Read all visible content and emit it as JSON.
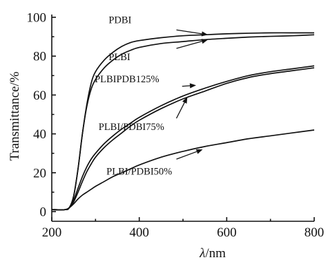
{
  "chart_data": {
    "type": "line",
    "title": "",
    "xlabel_italic": "λ",
    "xlabel_unit": "/nm",
    "ylabel": "Transmittance/%",
    "xlim": [
      200,
      800
    ],
    "ylim": [
      0,
      100
    ],
    "xticks": [
      200,
      400,
      600,
      800
    ],
    "yticks": [
      0,
      20,
      40,
      60,
      80,
      100
    ],
    "grid": false,
    "legend": "none",
    "series": [
      {
        "name": "PDBI",
        "label_anchor": [
          570,
          92
        ],
        "x": [
          200,
          230,
          240,
          250,
          260,
          270,
          280,
          290,
          300,
          320,
          340,
          360,
          380,
          400,
          450,
          500,
          550,
          600,
          650,
          700,
          750,
          800
        ],
        "y": [
          1,
          1,
          2,
          8,
          22,
          40,
          55,
          66,
          72,
          78,
          82,
          85,
          87,
          88,
          89.5,
          90.5,
          91,
          91.5,
          91.8,
          92,
          92,
          92
        ]
      },
      {
        "name": "PLBI",
        "label_anchor": [
          575,
          88.5
        ],
        "x": [
          200,
          230,
          240,
          250,
          260,
          270,
          280,
          290,
          300,
          320,
          340,
          360,
          380,
          400,
          450,
          500,
          550,
          600,
          650,
          700,
          750,
          800
        ],
        "y": [
          1,
          1,
          2,
          8,
          22,
          40,
          54,
          63,
          68,
          74,
          78,
          81,
          83,
          84.5,
          86.5,
          87.5,
          88.5,
          89.2,
          89.8,
          90.2,
          90.5,
          91
        ]
      },
      {
        "name": "PLBIPDB125%",
        "label_anchor": [
          540,
          66
        ],
        "x": [
          200,
          230,
          240,
          250,
          260,
          270,
          280,
          290,
          300,
          320,
          340,
          360,
          380,
          400,
          450,
          500,
          550,
          600,
          650,
          700,
          750,
          800
        ],
        "y": [
          1,
          1,
          2,
          6,
          12,
          18,
          23,
          27,
          30,
          35,
          39,
          42.5,
          45.5,
          48.5,
          54.5,
          59.5,
          63.5,
          67,
          70,
          72,
          73.5,
          75
        ]
      },
      {
        "name": "PLBI/PDBI75%",
        "label_anchor": [
          555,
          62
        ],
        "x": [
          200,
          230,
          240,
          250,
          260,
          270,
          280,
          290,
          300,
          320,
          340,
          360,
          380,
          400,
          450,
          500,
          550,
          600,
          650,
          700,
          750,
          800
        ],
        "y": [
          1,
          1,
          2,
          5,
          10,
          15.5,
          20.5,
          24.5,
          28,
          33,
          37,
          40.5,
          44,
          47,
          53,
          58,
          62,
          66,
          69,
          71,
          72.5,
          74
        ]
      },
      {
        "name": "PLBI/PDBI50%",
        "label_anchor": [
          530,
          33
        ],
        "x": [
          200,
          230,
          240,
          250,
          260,
          270,
          280,
          290,
          300,
          320,
          340,
          360,
          380,
          400,
          450,
          500,
          550,
          600,
          650,
          700,
          750,
          800
        ],
        "y": [
          1,
          1,
          2,
          4,
          6.5,
          8.5,
          10,
          11.5,
          13,
          15.5,
          18,
          20,
          22,
          24,
          28,
          31,
          33.5,
          35.5,
          37.5,
          39,
          40.5,
          42
        ]
      }
    ]
  },
  "annotations": [
    {
      "text": "PDBI",
      "text_x": 330,
      "text_y": 97,
      "arrow_from": [
        485,
        93.5
      ],
      "arrow_to": [
        557,
        91
      ],
      "target": "PDBI"
    },
    {
      "text": "PLBI",
      "text_x": 330,
      "text_y": 78,
      "arrow_from": [
        485,
        84
      ],
      "arrow_to": [
        557,
        88.5
      ],
      "target": "PLBI"
    },
    {
      "text": "PLBIPDB125%",
      "text_x": 298,
      "text_y": 66.5,
      "arrow_from": [
        498,
        64.5
      ],
      "arrow_to": [
        530,
        65
      ],
      "target": "PLBIPDB125%"
    },
    {
      "text": "PLBI/PDBI75%",
      "text_x": 307,
      "text_y": 42,
      "arrow_from": [
        485,
        48
      ],
      "arrow_to": [
        510,
        59
      ],
      "target": "PLBI/PDBI75%"
    },
    {
      "text": "PLBI/PDBI50%",
      "text_x": 325,
      "text_y": 19,
      "arrow_from": [
        485,
        27
      ],
      "arrow_to": [
        545,
        32
      ],
      "target": "PLBI/PDBI50%"
    }
  ]
}
